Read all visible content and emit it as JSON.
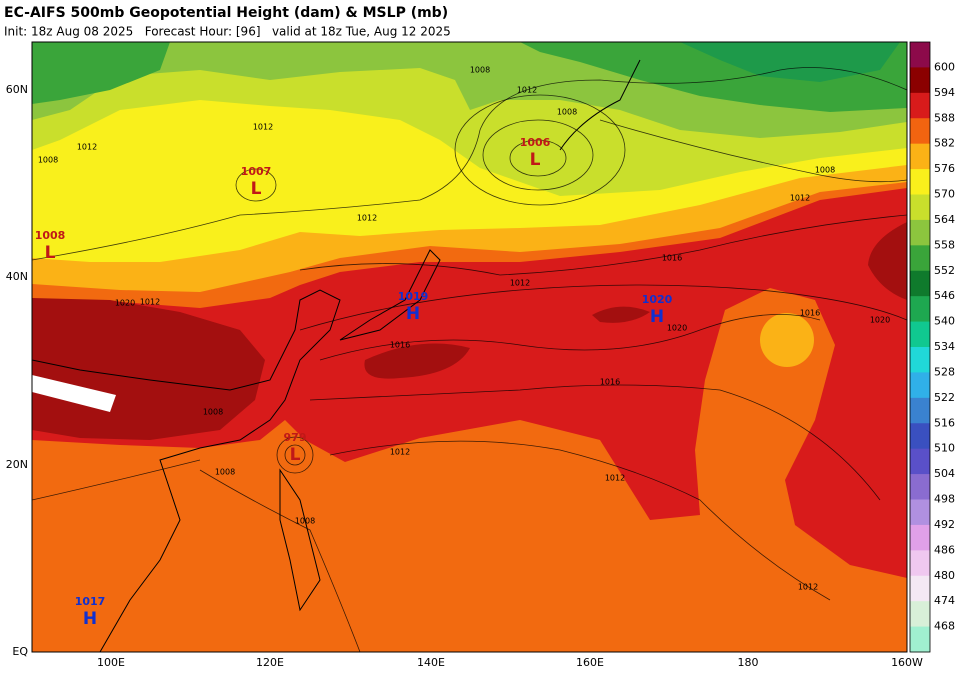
{
  "header": {
    "title": "EC-AIFS 500mb Geopotential Height (dam) & MSLP (mb)",
    "subtitle": "Init: 18z Aug 08 2025   Forecast Hour: [96]   valid at 18z Tue, Aug 12 2025"
  },
  "axes": {
    "lat_labels": [
      "60N",
      "40N",
      "20N",
      "EQ"
    ],
    "lon_labels": [
      "100E",
      "120E",
      "140E",
      "160E",
      "180",
      "160W"
    ]
  },
  "colorbar": {
    "levels": [
      600,
      594,
      588,
      582,
      576,
      570,
      564,
      558,
      552,
      546,
      540,
      534,
      528,
      522,
      516,
      510,
      504,
      498,
      492,
      486,
      480,
      474,
      468
    ]
  },
  "centers": [
    {
      "label": "L",
      "value": 1007
    },
    {
      "label": "L",
      "value": 1006
    },
    {
      "label": "H",
      "value": 1019
    },
    {
      "label": "H",
      "value": 1020
    },
    {
      "label": "H",
      "value": 1017
    },
    {
      "label": "L",
      "value": 979
    },
    {
      "label": "L",
      "value": 1008
    }
  ],
  "isobar_labels": [
    1008,
    1012,
    1008,
    1012,
    1012,
    1008,
    1012,
    1012,
    1008,
    1016,
    1012,
    1016,
    1020,
    1020,
    1016,
    1016,
    1012,
    1012,
    1008,
    1008,
    1012,
    1012,
    1020,
    1008
  ]
}
